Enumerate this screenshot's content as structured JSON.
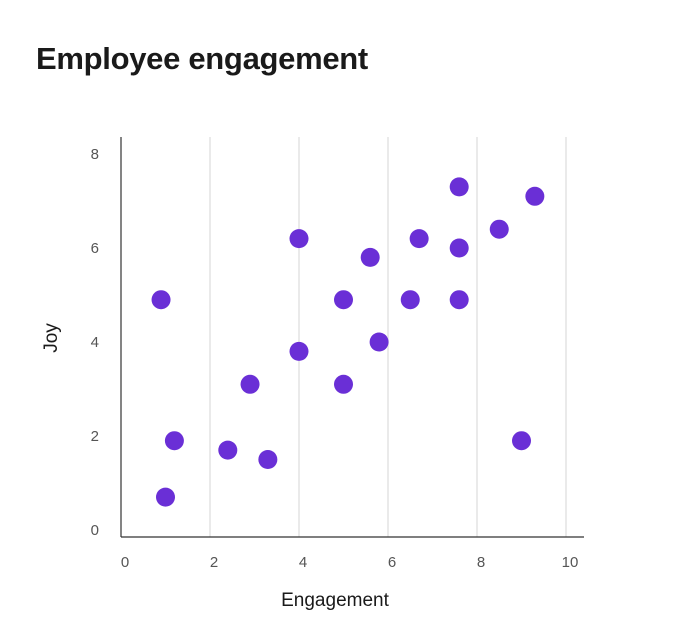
{
  "chart_data": {
    "type": "scatter",
    "title": "Employee engagement",
    "xlabel": "Engagement",
    "ylabel": "Joy",
    "xlim": [
      0,
      10
    ],
    "ylim": [
      0,
      8
    ],
    "xticks": [
      0,
      2,
      4,
      6,
      8,
      10
    ],
    "yticks": [
      0,
      2,
      4,
      6,
      8
    ],
    "grid": "vertical",
    "legend": "none",
    "color": "#6a2fd6",
    "points": [
      {
        "x": 1.0,
        "y": 0.7
      },
      {
        "x": 0.9,
        "y": 4.9
      },
      {
        "x": 1.2,
        "y": 1.9
      },
      {
        "x": 2.4,
        "y": 1.7
      },
      {
        "x": 2.9,
        "y": 3.1
      },
      {
        "x": 3.3,
        "y": 1.5
      },
      {
        "x": 4.0,
        "y": 3.8
      },
      {
        "x": 4.0,
        "y": 6.2
      },
      {
        "x": 5.0,
        "y": 4.9
      },
      {
        "x": 5.0,
        "y": 3.1
      },
      {
        "x": 5.6,
        "y": 5.8
      },
      {
        "x": 5.8,
        "y": 4.0
      },
      {
        "x": 6.5,
        "y": 4.9
      },
      {
        "x": 6.7,
        "y": 6.2
      },
      {
        "x": 7.6,
        "y": 7.3
      },
      {
        "x": 7.6,
        "y": 6.0
      },
      {
        "x": 7.6,
        "y": 4.9
      },
      {
        "x": 8.5,
        "y": 6.4
      },
      {
        "x": 9.0,
        "y": 1.9
      },
      {
        "x": 9.3,
        "y": 7.1
      }
    ]
  }
}
